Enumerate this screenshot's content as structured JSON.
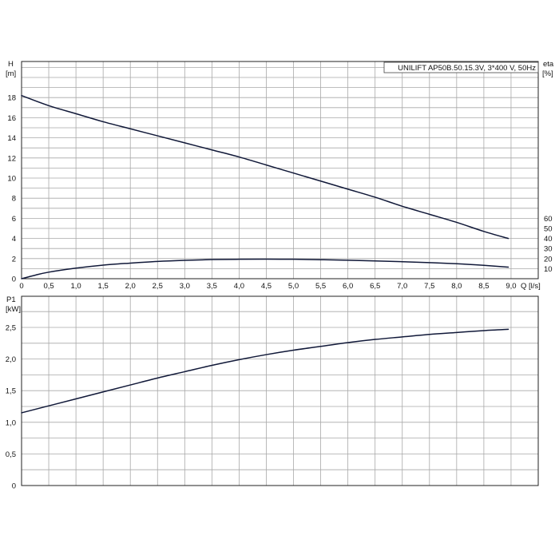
{
  "chart_data": [
    {
      "type": "line",
      "title": "UNILIFT AP50B.50.15.3V, 3*400 V, 50Hz",
      "ylabel_top": "H",
      "ylabel_unit": "[m]",
      "y2label_top": "eta",
      "y2label_unit": "[%]",
      "xlabel": "Q [l/s]",
      "xlim": [
        0,
        9.5
      ],
      "ylim": [
        0,
        20
      ],
      "y2lim": [
        0,
        80
      ],
      "x_ticks": [
        "0",
        "0,5",
        "1,0",
        "1,5",
        "2,0",
        "2,5",
        "3,0",
        "3,5",
        "4,0",
        "4,5",
        "5,0",
        "5,5",
        "6,0",
        "6,5",
        "7,0",
        "7,5",
        "8,0",
        "8,5",
        "9,0"
      ],
      "y_ticks": [
        "0",
        "2",
        "4",
        "6",
        "8",
        "10",
        "12",
        "14",
        "16",
        "18"
      ],
      "y2_ticks": [
        "10",
        "20",
        "30",
        "40",
        "50",
        "60"
      ],
      "grid": true,
      "series": [
        {
          "axis": "left",
          "x": [
            0,
            0.5,
            1.0,
            1.5,
            2.0,
            2.5,
            3.0,
            3.5,
            4.0,
            4.5,
            5.0,
            5.5,
            6.0,
            6.5,
            7.0,
            7.5,
            8.0,
            8.5,
            8.95
          ],
          "values": [
            18.2,
            17.2,
            16.4,
            15.6,
            14.9,
            14.2,
            13.5,
            12.8,
            12.1,
            11.3,
            10.5,
            9.7,
            8.9,
            8.1,
            7.2,
            6.4,
            5.6,
            4.7,
            4.0
          ]
        },
        {
          "axis": "right",
          "x": [
            0,
            0.25,
            0.5,
            1.0,
            1.5,
            2.0,
            2.5,
            3.0,
            3.5,
            4.0,
            4.5,
            5.0,
            5.5,
            6.0,
            6.5,
            7.0,
            7.5,
            8.0,
            8.5,
            8.95
          ],
          "values": [
            0,
            3.5,
            6.5,
            10.5,
            13.5,
            15.5,
            17.2,
            18.3,
            19.0,
            19.3,
            19.4,
            19.3,
            18.9,
            18.4,
            17.7,
            16.9,
            16.0,
            14.9,
            13.3,
            11.5
          ]
        }
      ]
    },
    {
      "type": "line",
      "ylabel_top": "P1",
      "ylabel_unit": "[kW]",
      "xlim": [
        0,
        9.5
      ],
      "ylim": [
        0,
        3.0
      ],
      "y_ticks": [
        "0",
        "0,5",
        "1,0",
        "1,5",
        "2,0",
        "2,5"
      ],
      "grid": true,
      "series": [
        {
          "x": [
            0,
            0.5,
            1.0,
            1.5,
            2.0,
            2.5,
            3.0,
            3.5,
            4.0,
            4.5,
            5.0,
            5.5,
            6.0,
            6.5,
            7.0,
            7.5,
            8.0,
            8.5,
            8.95
          ],
          "values": [
            1.15,
            1.26,
            1.37,
            1.48,
            1.59,
            1.7,
            1.8,
            1.9,
            1.99,
            2.07,
            2.14,
            2.2,
            2.26,
            2.31,
            2.35,
            2.39,
            2.42,
            2.45,
            2.47
          ]
        }
      ]
    }
  ]
}
